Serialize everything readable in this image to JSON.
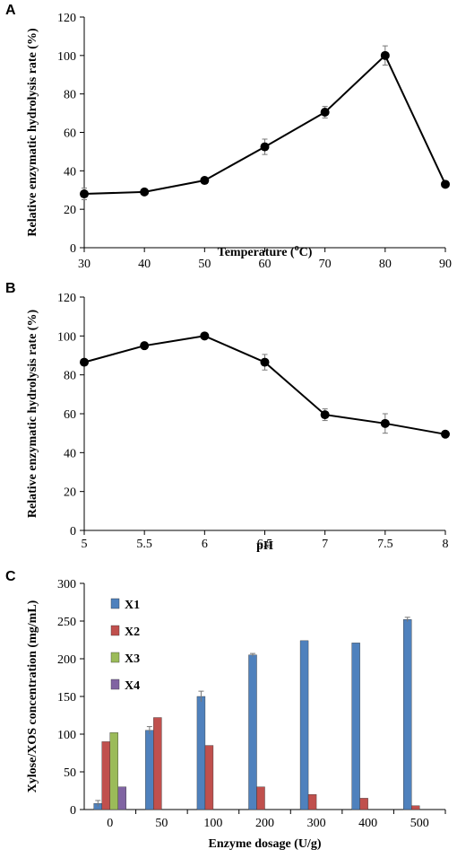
{
  "chart_data": [
    {
      "panel": "A",
      "type": "line",
      "xlabel": "Temperature (",
      "xlabel_sup": "o",
      "xlabel_tail": "C)",
      "ylabel": "Relative enzymatic hydrolysis rate (%)",
      "ylim": [
        0,
        120
      ],
      "yticks": [
        0,
        20,
        40,
        60,
        80,
        100,
        120
      ],
      "xlim": [
        30,
        90
      ],
      "xticks": [
        "30",
        "40",
        "50",
        "60",
        "70",
        "80",
        "90"
      ],
      "series": [
        {
          "x": [
            30,
            40,
            50,
            60,
            70,
            80,
            90
          ],
          "values": [
            28,
            29,
            35,
            52.5,
            70.5,
            100,
            33
          ],
          "errors": [
            3,
            1,
            1,
            4,
            3,
            5,
            1
          ]
        }
      ],
      "grid": false,
      "color": "#000000"
    },
    {
      "panel": "B",
      "type": "line",
      "xlabel": "pH",
      "ylabel": "Relative enzymatic hydrolysis rate (%)",
      "ylim": [
        0,
        120
      ],
      "yticks": [
        0,
        20,
        40,
        60,
        80,
        100,
        120
      ],
      "xlim": [
        5,
        8
      ],
      "xticks": [
        "5",
        "5.5",
        "6",
        "6.5",
        "7",
        "7.5",
        "8"
      ],
      "series": [
        {
          "x": [
            5,
            5.5,
            6,
            6.5,
            7,
            7.5,
            8
          ],
          "values": [
            86.5,
            95,
            100,
            86.5,
            59.5,
            55,
            49.5
          ],
          "errors": [
            1,
            1,
            1,
            4,
            3,
            5,
            1
          ]
        }
      ],
      "grid": false,
      "color": "#000000"
    },
    {
      "panel": "C",
      "type": "bar",
      "xlabel": "Enzyme dosage (U/g)",
      "ylabel": "Xylose/XOS concentration (mg/mL)",
      "ylim": [
        0,
        300
      ],
      "yticks": [
        0,
        50,
        100,
        150,
        200,
        250,
        300
      ],
      "categories": [
        "0",
        "50",
        "100",
        "200",
        "300",
        "400",
        "500"
      ],
      "legend_position": "top-left",
      "grid": false,
      "series": [
        {
          "name": "X1",
          "color": "#4f81bd",
          "values": [
            8,
            105,
            150,
            205,
            224,
            221,
            252
          ],
          "errors": [
            4,
            5,
            7,
            2,
            0,
            0,
            3
          ]
        },
        {
          "name": "X2",
          "color": "#c0504d",
          "values": [
            90,
            122,
            85,
            30,
            20,
            15,
            5
          ],
          "errors": [
            0,
            0,
            0,
            0,
            0,
            0,
            0
          ]
        },
        {
          "name": "X3",
          "color": "#9bbb59",
          "values": [
            102,
            0,
            0,
            0,
            0,
            0,
            0
          ],
          "errors": [
            0,
            0,
            0,
            0,
            0,
            0,
            0
          ]
        },
        {
          "name": "X4",
          "color": "#8064a2",
          "values": [
            30,
            0,
            0,
            0,
            0,
            0,
            0
          ],
          "errors": [
            0,
            0,
            0,
            0,
            0,
            0,
            0
          ]
        }
      ]
    }
  ]
}
